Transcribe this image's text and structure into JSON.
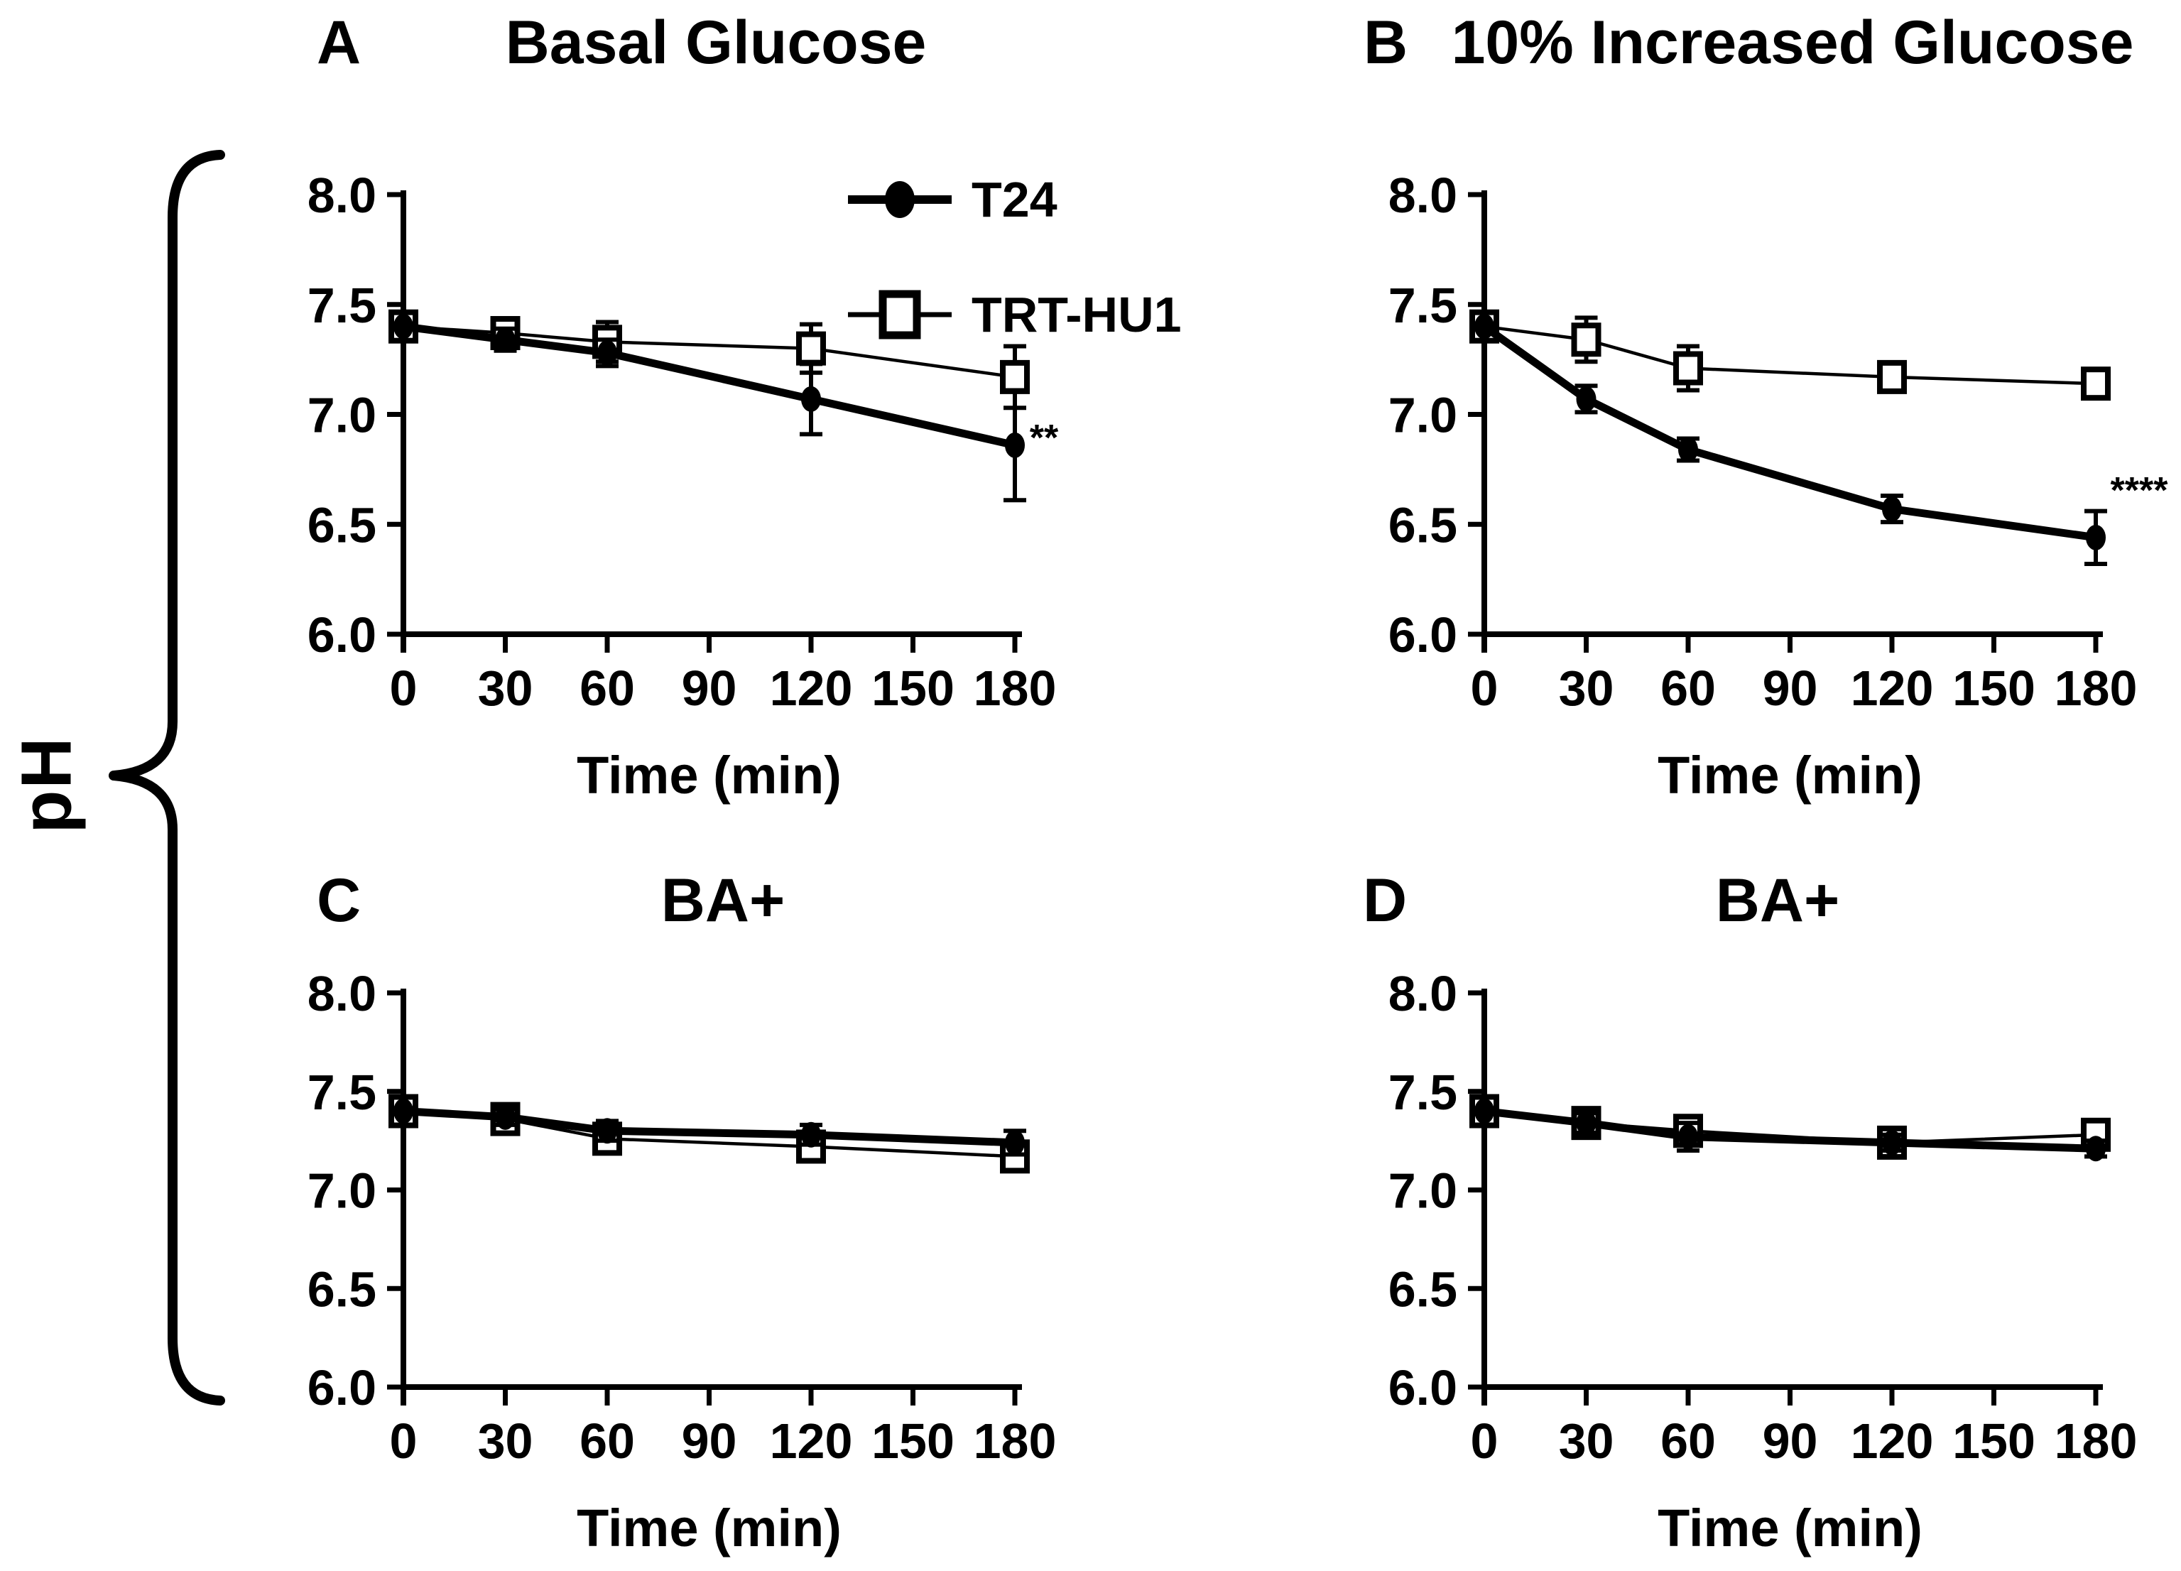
{
  "figure": {
    "ylabel": "pH",
    "background": "#ffffff",
    "ink": "#000000"
  },
  "legend": {
    "entries": [
      {
        "label": "T24",
        "marker": "filled-circle"
      },
      {
        "label": "TRT-HU1",
        "marker": "open-square"
      }
    ]
  },
  "chart_data": [
    {
      "id": "A",
      "letter": "A",
      "title": "Basal Glucose",
      "type": "line",
      "xlabel": "Time (min)",
      "ylabel": "pH",
      "ylim": [
        6.0,
        8.0
      ],
      "x_ticks": [
        0,
        30,
        60,
        90,
        120,
        150,
        180
      ],
      "y_tick_labels": [
        "8.0",
        "7.5",
        "7.0",
        "6.5",
        "6.0"
      ],
      "x": [
        0,
        30,
        60,
        120,
        180
      ],
      "significance": "**",
      "legend_position": "top-right",
      "series": [
        {
          "name": "T24",
          "marker": "filled-circle",
          "values": [
            7.4,
            7.34,
            7.28,
            7.07,
            6.86
          ],
          "errors": [
            0,
            0.05,
            0.06,
            0.16,
            0.25
          ]
        },
        {
          "name": "TRT-HU1",
          "marker": "open-square",
          "values": [
            7.4,
            7.37,
            7.33,
            7.3,
            7.17
          ],
          "errors": [
            0,
            0.05,
            0.09,
            0.11,
            0.14
          ]
        }
      ]
    },
    {
      "id": "B",
      "letter": "B",
      "title": "10% Increased Glucose",
      "type": "line",
      "xlabel": "Time (min)",
      "ylabel": "pH",
      "ylim": [
        6.0,
        8.0
      ],
      "x_ticks": [
        0,
        30,
        60,
        90,
        120,
        150,
        180
      ],
      "y_tick_labels": [
        "8.0",
        "7.5",
        "7.0",
        "6.5",
        "6.0"
      ],
      "x": [
        0,
        30,
        60,
        120,
        180
      ],
      "significance": "****",
      "series": [
        {
          "name": "T24",
          "marker": "filled-circle",
          "values": [
            7.4,
            7.07,
            6.84,
            6.57,
            6.44
          ],
          "errors": [
            0,
            0.06,
            0.05,
            0.06,
            0.12
          ]
        },
        {
          "name": "TRT-HU1",
          "marker": "open-square",
          "values": [
            7.4,
            7.34,
            7.21,
            7.17,
            7.14
          ],
          "errors": [
            0,
            0.1,
            0.1,
            0.05,
            0.05
          ]
        }
      ]
    },
    {
      "id": "C",
      "letter": "C",
      "title": "BA+",
      "type": "line",
      "xlabel": "Time (min)",
      "ylabel": "pH",
      "ylim": [
        6.0,
        8.0
      ],
      "x_ticks": [
        0,
        30,
        60,
        90,
        120,
        150,
        180
      ],
      "y_tick_labels": [
        "8.0",
        "7.5",
        "7.0",
        "6.5",
        "6.0"
      ],
      "x": [
        0,
        30,
        60,
        120,
        180
      ],
      "significance": "",
      "series": [
        {
          "name": "T24",
          "marker": "filled-circle",
          "values": [
            7.4,
            7.37,
            7.3,
            7.28,
            7.24
          ],
          "errors": [
            0,
            0.04,
            0.05,
            0.05,
            0.06
          ]
        },
        {
          "name": "TRT-HU1",
          "marker": "open-square",
          "values": [
            7.4,
            7.36,
            7.26,
            7.22,
            7.17
          ],
          "errors": [
            0,
            0.04,
            0.05,
            0.06,
            0.06
          ]
        }
      ]
    },
    {
      "id": "D",
      "letter": "D",
      "title": "BA+",
      "type": "line",
      "xlabel": "Time (min)",
      "ylabel": "pH",
      "ylim": [
        6.0,
        8.0
      ],
      "x_ticks": [
        0,
        30,
        60,
        90,
        120,
        150,
        180
      ],
      "y_tick_labels": [
        "8.0",
        "7.5",
        "7.0",
        "6.5",
        "6.0"
      ],
      "x": [
        0,
        30,
        60,
        120,
        180
      ],
      "significance": "",
      "series": [
        {
          "name": "T24",
          "marker": "filled-circle",
          "values": [
            7.4,
            7.34,
            7.27,
            7.24,
            7.21
          ],
          "errors": [
            0,
            0.05,
            0.07,
            0.04,
            0.04
          ]
        },
        {
          "name": "TRT-HU1",
          "marker": "open-square",
          "values": [
            7.4,
            7.34,
            7.3,
            7.24,
            7.28
          ],
          "errors": [
            0,
            0.05,
            0.05,
            0.04,
            0.05
          ]
        }
      ]
    }
  ]
}
